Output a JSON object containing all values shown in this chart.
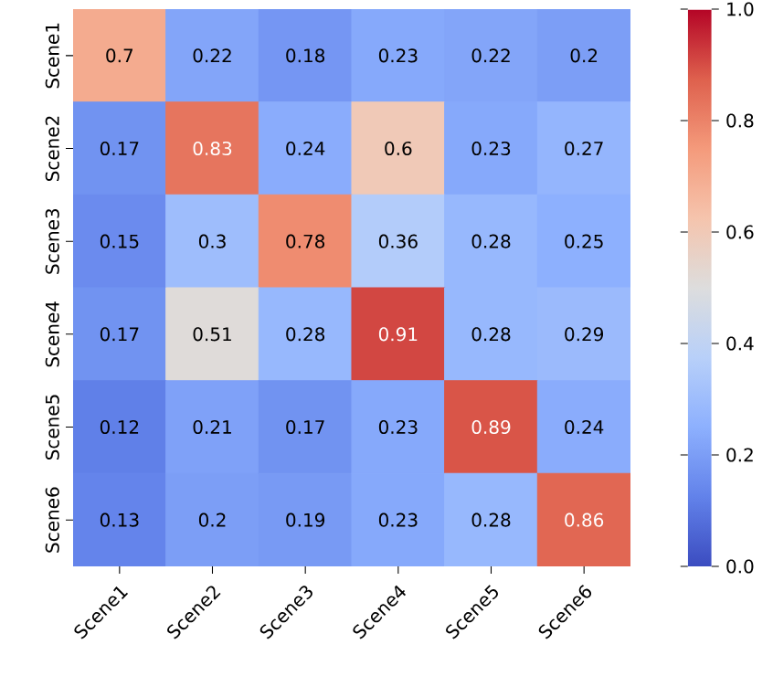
{
  "chart_data": {
    "type": "heatmap",
    "categories": [
      "Scene1",
      "Scene2",
      "Scene3",
      "Scene4",
      "Scene5",
      "Scene6"
    ],
    "y_categories": [
      "Scene1",
      "Scene2",
      "Scene3",
      "Scene4",
      "Scene5",
      "Scene6"
    ],
    "cells": [
      [
        0.7,
        0.22,
        0.18,
        0.23,
        0.22,
        0.2
      ],
      [
        0.17,
        0.83,
        0.24,
        0.6,
        0.23,
        0.27
      ],
      [
        0.15,
        0.3,
        0.78,
        0.36,
        0.28,
        0.25
      ],
      [
        0.17,
        0.51,
        0.28,
        0.91,
        0.28,
        0.29
      ],
      [
        0.12,
        0.21,
        0.17,
        0.23,
        0.89,
        0.24
      ],
      [
        0.13,
        0.2,
        0.19,
        0.23,
        0.28,
        0.86
      ]
    ],
    "data_labels": true,
    "clim": [
      0.0,
      1.0
    ],
    "cticks": [
      {
        "value": 0,
        "label": "0.0"
      },
      {
        "value": 0.2,
        "label": "0.2"
      },
      {
        "value": 0.4,
        "label": "0.4"
      },
      {
        "value": 0.6,
        "label": "0.6"
      },
      {
        "value": 0.8,
        "label": "0.8"
      },
      {
        "value": 1,
        "label": "1.0"
      }
    ]
  }
}
